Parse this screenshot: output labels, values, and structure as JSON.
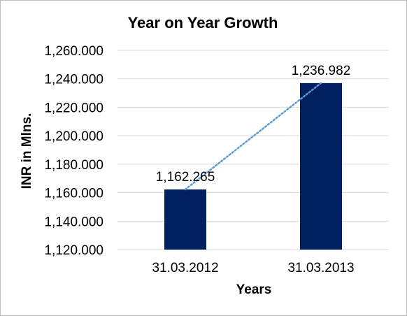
{
  "chart_data": {
    "type": "bar",
    "title": "Year on Year Growth",
    "xlabel": "Years",
    "ylabel": "INR in Mlns.",
    "categories": [
      "31.03.2012",
      "31.03.2013"
    ],
    "values": [
      1162.265,
      1236.982
    ],
    "data_labels": [
      "1,162.265",
      "1,236.982"
    ],
    "ylim": [
      1120,
      1260
    ],
    "y_ticks": [
      1120,
      1140,
      1160,
      1180,
      1200,
      1220,
      1240,
      1260
    ],
    "y_tick_labels": [
      "1,120.000",
      "1,140.000",
      "1,160.000",
      "1,180.000",
      "1,200.000",
      "1,220.000",
      "1,240.000",
      "1,260.000"
    ],
    "grid": true,
    "trendline": "linear dotted",
    "legend": "none",
    "colors": {
      "bar": "#002060",
      "trendline": "#5b9bd5",
      "grid": "#d9d9d9"
    }
  }
}
